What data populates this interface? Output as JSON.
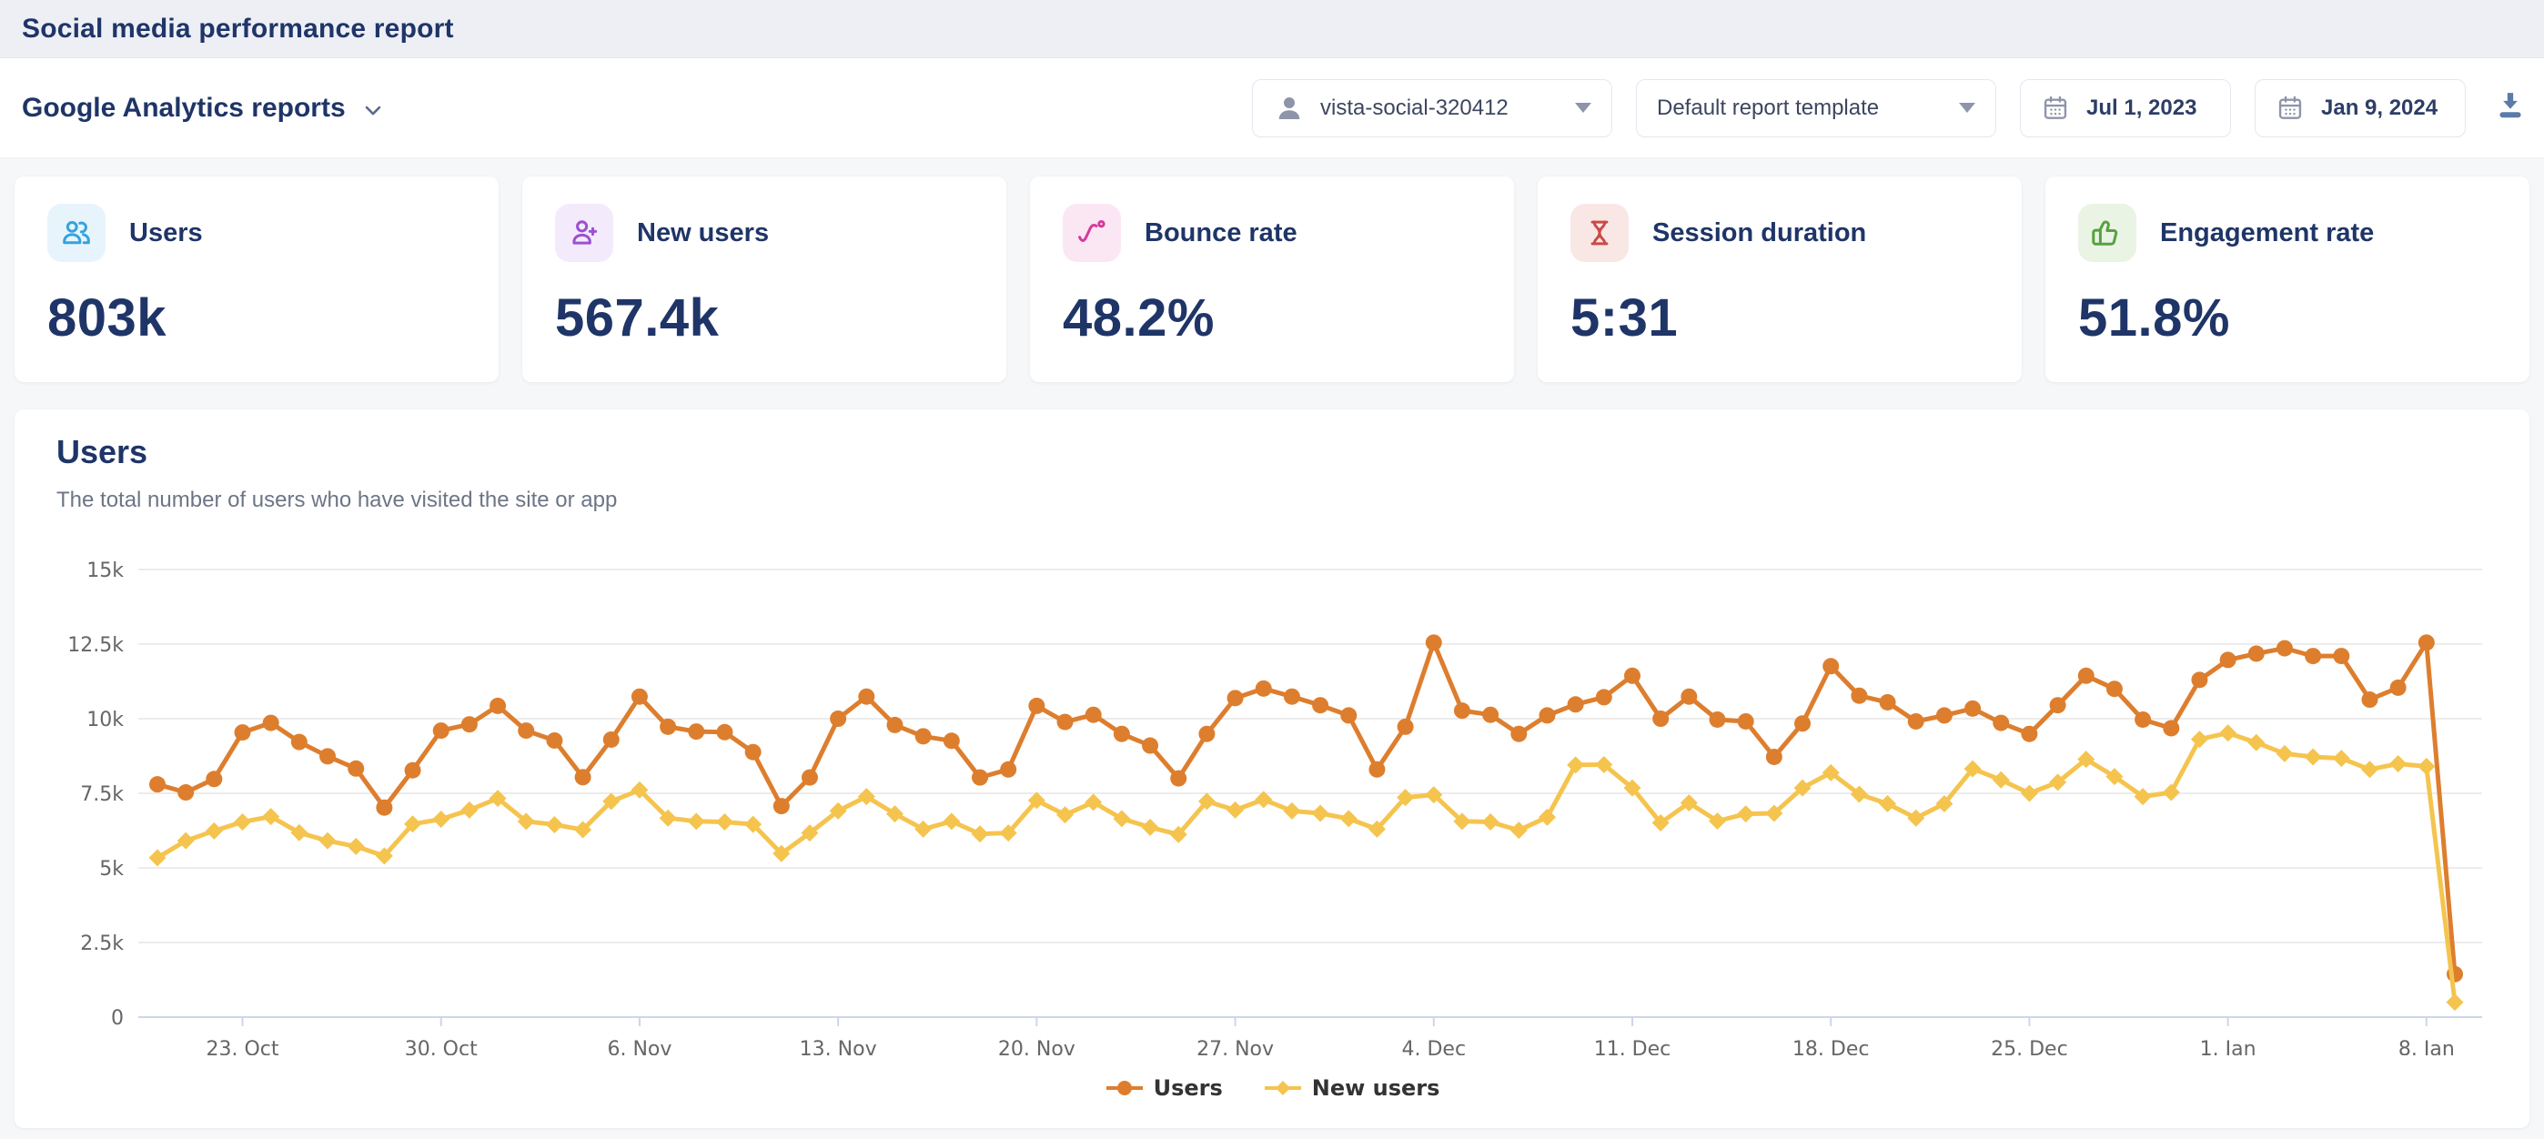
{
  "page": {
    "title": "Social media performance report"
  },
  "toolbar": {
    "report_type": "Google Analytics reports",
    "profile": "vista-social-320412",
    "template": "Default report template",
    "date_from": "Jul 1, 2023",
    "date_to": "Jan 9, 2024"
  },
  "metrics": {
    "cards": [
      {
        "label": "Users",
        "value": "803k",
        "icon": "users-icon",
        "accent": "#35a3dc",
        "bg": "#e8f4fb"
      },
      {
        "label": "New users",
        "value": "567.4k",
        "icon": "user-plus-icon",
        "accent": "#9b51d0",
        "bg": "#f3eafb"
      },
      {
        "label": "Bounce rate",
        "value": "48.2%",
        "icon": "bounce-icon",
        "accent": "#d63a9c",
        "bg": "#fbe7f4"
      },
      {
        "label": "Session duration",
        "value": "5:31",
        "icon": "hourglass-icon",
        "accent": "#cc4a44",
        "bg": "#f9e7e6"
      },
      {
        "label": "Engagement rate",
        "value": "51.8%",
        "icon": "thumbs-up-icon",
        "accent": "#57a13f",
        "bg": "#e9f4e4"
      }
    ]
  },
  "chart": {
    "title": "Users",
    "subtitle": "The total number of users who have visited the site or app"
  },
  "chart_data": {
    "type": "line",
    "title": "Users",
    "xlabel": "",
    "ylabel": "",
    "ylim": [
      0,
      15000
    ],
    "grid": true,
    "legend_position": "bottom",
    "start_date": "2023-10-20",
    "interval": "daily",
    "y_ticks": [
      {
        "value": 0,
        "label": "0"
      },
      {
        "value": 2500,
        "label": "2.5k"
      },
      {
        "value": 5000,
        "label": "5k"
      },
      {
        "value": 7500,
        "label": "7.5k"
      },
      {
        "value": 10000,
        "label": "10k"
      },
      {
        "value": 12500,
        "label": "12.5k"
      },
      {
        "value": 15000,
        "label": "15k"
      }
    ],
    "x_tick_labels": [
      {
        "index": 3,
        "label": "23. Oct"
      },
      {
        "index": 10,
        "label": "30. Oct"
      },
      {
        "index": 17,
        "label": "6. Nov"
      },
      {
        "index": 24,
        "label": "13. Nov"
      },
      {
        "index": 31,
        "label": "20. Nov"
      },
      {
        "index": 38,
        "label": "27. Nov"
      },
      {
        "index": 45,
        "label": "4. Dec"
      },
      {
        "index": 52,
        "label": "11. Dec"
      },
      {
        "index": 59,
        "label": "18. Dec"
      },
      {
        "index": 66,
        "label": "25. Dec"
      },
      {
        "index": 73,
        "label": "1. Jan"
      },
      {
        "index": 80,
        "label": "8. Jan"
      }
    ],
    "series": [
      {
        "name": "Users",
        "color": "#dd7e2e",
        "marker": "circle",
        "values": [
          7800,
          7530,
          7980,
          9540,
          9860,
          9220,
          8740,
          8330,
          7020,
          8270,
          9600,
          9810,
          10430,
          9600,
          9270,
          8040,
          9300,
          10740,
          9730,
          9570,
          9550,
          8880,
          7070,
          8030,
          10000,
          10740,
          9790,
          9410,
          9260,
          8030,
          8300,
          10430,
          9890,
          10130,
          9490,
          9100,
          8000,
          9490,
          10690,
          11010,
          10740,
          10450,
          10110,
          8300,
          9730,
          12550,
          10270,
          10130,
          9490,
          10110,
          10480,
          10720,
          11440,
          10000,
          10740,
          9970,
          9910,
          8720,
          9840,
          11760,
          10770,
          10550,
          9910,
          10110,
          10340,
          9860,
          9490,
          10450,
          11440,
          11000,
          9970,
          9680,
          11300,
          11970,
          12180,
          12360,
          12100,
          12100,
          10640,
          11040,
          12550,
          1440
        ]
      },
      {
        "name": "New users",
        "color": "#f5c44e",
        "marker": "diamond",
        "values": [
          5340,
          5910,
          6240,
          6540,
          6720,
          6180,
          5910,
          5720,
          5400,
          6470,
          6630,
          6940,
          7330,
          6560,
          6450,
          6280,
          7230,
          7610,
          6670,
          6560,
          6540,
          6460,
          5480,
          6170,
          6910,
          7390,
          6810,
          6300,
          6560,
          6140,
          6170,
          7260,
          6780,
          7200,
          6650,
          6360,
          6120,
          7230,
          6940,
          7290,
          6910,
          6830,
          6650,
          6300,
          7360,
          7450,
          6560,
          6540,
          6260,
          6700,
          8450,
          8460,
          7680,
          6510,
          7180,
          6570,
          6810,
          6830,
          7680,
          8190,
          7470,
          7150,
          6670,
          7150,
          8320,
          7950,
          7500,
          7870,
          8640,
          8060,
          7390,
          7530,
          9310,
          9520,
          9200,
          8830,
          8720,
          8670,
          8300,
          8490,
          8400,
          500
        ]
      }
    ]
  }
}
